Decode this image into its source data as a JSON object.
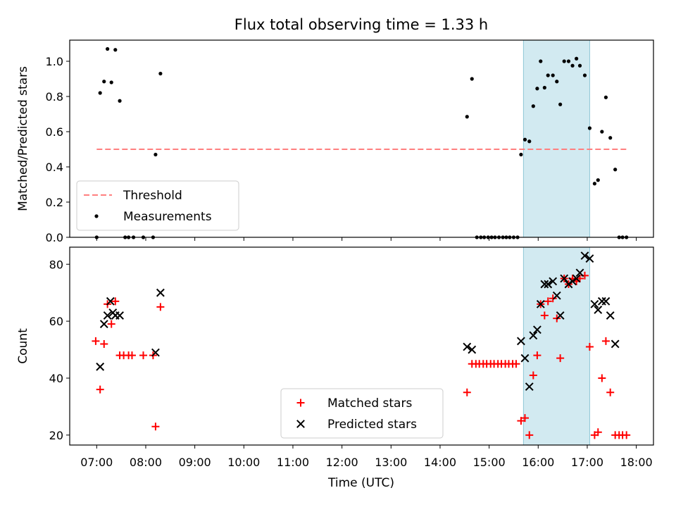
{
  "chart_data": {
    "type": "scatter",
    "title": "Flux total observing time = 1.33 h",
    "xlabel": "Time (UTC)",
    "x_unit": "hours UTC",
    "xlim": [
      6.45,
      18.35
    ],
    "x_ticks": [
      7,
      8,
      9,
      10,
      11,
      12,
      13,
      14,
      15,
      16,
      17,
      18
    ],
    "x_tick_labels": [
      "07:00",
      "08:00",
      "09:00",
      "10:00",
      "11:00",
      "12:00",
      "13:00",
      "14:00",
      "15:00",
      "16:00",
      "17:00",
      "18:00"
    ],
    "highlight_span": [
      15.7,
      17.05
    ],
    "highlight_color": "#add8e6",
    "panels": [
      {
        "ylabel": "Matched/Predicted stars",
        "ylim": [
          0,
          1.12
        ],
        "y_ticks": [
          0,
          0.2,
          0.4,
          0.6,
          0.8,
          1.0
        ],
        "y_tick_labels": [
          "0.0",
          "0.2",
          "0.4",
          "0.6",
          "0.8",
          "1.0"
        ],
        "legend_position": "lower-left",
        "threshold": {
          "name": "Threshold",
          "value": 0.5,
          "x": [
            7.0,
            17.8
          ],
          "color": "#ff7f7f",
          "style": "dashed"
        },
        "series": [
          {
            "name": "Measurements",
            "marker": "dot",
            "color": "#000000",
            "points": [
              [
                7.0,
                0.0
              ],
              [
                7.07,
                0.82
              ],
              [
                7.15,
                0.885
              ],
              [
                7.22,
                1.07
              ],
              [
                7.3,
                0.88
              ],
              [
                7.38,
                1.065
              ],
              [
                7.47,
                0.775
              ],
              [
                7.58,
                0.0
              ],
              [
                7.65,
                0.0
              ],
              [
                7.75,
                0.0
              ],
              [
                7.95,
                0.0
              ],
              [
                8.15,
                0.0
              ],
              [
                8.2,
                0.47
              ],
              [
                8.3,
                0.93
              ],
              [
                14.55,
                0.685
              ],
              [
                14.65,
                0.9
              ],
              [
                14.75,
                0.0
              ],
              [
                14.83,
                0.0
              ],
              [
                14.9,
                0.0
              ],
              [
                14.98,
                0.0
              ],
              [
                15.05,
                0.0
              ],
              [
                15.12,
                0.0
              ],
              [
                15.2,
                0.0
              ],
              [
                15.28,
                0.0
              ],
              [
                15.35,
                0.0
              ],
              [
                15.42,
                0.0
              ],
              [
                15.5,
                0.0
              ],
              [
                15.58,
                0.0
              ],
              [
                15.65,
                0.47
              ],
              [
                15.73,
                0.555
              ],
              [
                15.82,
                0.545
              ],
              [
                15.9,
                0.745
              ],
              [
                15.98,
                0.845
              ],
              [
                16.05,
                1.0
              ],
              [
                16.13,
                0.85
              ],
              [
                16.2,
                0.92
              ],
              [
                16.3,
                0.92
              ],
              [
                16.38,
                0.885
              ],
              [
                16.45,
                0.755
              ],
              [
                16.53,
                1.0
              ],
              [
                16.62,
                1.0
              ],
              [
                16.7,
                0.975
              ],
              [
                16.78,
                1.015
              ],
              [
                16.85,
                0.975
              ],
              [
                16.95,
                0.92
              ],
              [
                17.05,
                0.62
              ],
              [
                17.15,
                0.305
              ],
              [
                17.22,
                0.325
              ],
              [
                17.3,
                0.6
              ],
              [
                17.38,
                0.795
              ],
              [
                17.47,
                0.565
              ],
              [
                17.57,
                0.385
              ],
              [
                17.65,
                0.0
              ],
              [
                17.72,
                0.0
              ],
              [
                17.8,
                0.0
              ]
            ]
          }
        ]
      },
      {
        "ylabel": "Count",
        "ylim": [
          16.5,
          86
        ],
        "y_ticks": [
          20,
          40,
          60,
          80
        ],
        "y_tick_labels": [
          "20",
          "40",
          "60",
          "80"
        ],
        "legend_position": "lower-center",
        "series": [
          {
            "name": "Matched stars",
            "marker": "plus",
            "color": "#ff0000",
            "points": [
              [
                6.98,
                53
              ],
              [
                7.07,
                36
              ],
              [
                7.15,
                52
              ],
              [
                7.22,
                66
              ],
              [
                7.3,
                59
              ],
              [
                7.38,
                67
              ],
              [
                7.47,
                48
              ],
              [
                7.55,
                48
              ],
              [
                7.65,
                48
              ],
              [
                7.72,
                48
              ],
              [
                7.95,
                48
              ],
              [
                8.15,
                48
              ],
              [
                8.2,
                23
              ],
              [
                8.3,
                65
              ],
              [
                14.55,
                35
              ],
              [
                14.65,
                45
              ],
              [
                14.73,
                45
              ],
              [
                14.8,
                45
              ],
              [
                14.88,
                45
              ],
              [
                14.95,
                45
              ],
              [
                15.03,
                45
              ],
              [
                15.1,
                45
              ],
              [
                15.18,
                45
              ],
              [
                15.25,
                45
              ],
              [
                15.33,
                45
              ],
              [
                15.4,
                45
              ],
              [
                15.48,
                45
              ],
              [
                15.55,
                45
              ],
              [
                15.65,
                25
              ],
              [
                15.73,
                26
              ],
              [
                15.82,
                20
              ],
              [
                15.9,
                41
              ],
              [
                15.98,
                48
              ],
              [
                16.05,
                66
              ],
              [
                16.13,
                62
              ],
              [
                16.2,
                67
              ],
              [
                16.3,
                68
              ],
              [
                16.38,
                61
              ],
              [
                16.45,
                47
              ],
              [
                16.53,
                75
              ],
              [
                16.62,
                73
              ],
              [
                16.7,
                75
              ],
              [
                16.78,
                74
              ],
              [
                16.85,
                75
              ],
              [
                16.95,
                76
              ],
              [
                17.05,
                51
              ],
              [
                17.15,
                20
              ],
              [
                17.22,
                21
              ],
              [
                17.3,
                40
              ],
              [
                17.38,
                53
              ],
              [
                17.47,
                35
              ],
              [
                17.57,
                20
              ],
              [
                17.65,
                20
              ],
              [
                17.72,
                20
              ],
              [
                17.8,
                20
              ]
            ]
          },
          {
            "name": "Predicted stars",
            "marker": "x",
            "color": "#000000",
            "points": [
              [
                7.07,
                44
              ],
              [
                7.15,
                59
              ],
              [
                7.22,
                62
              ],
              [
                7.28,
                67
              ],
              [
                7.33,
                63
              ],
              [
                7.38,
                62
              ],
              [
                7.47,
                62
              ],
              [
                8.2,
                49
              ],
              [
                8.3,
                70
              ],
              [
                14.55,
                51
              ],
              [
                14.65,
                50
              ],
              [
                15.65,
                53
              ],
              [
                15.73,
                47
              ],
              [
                15.82,
                37
              ],
              [
                15.9,
                55
              ],
              [
                15.98,
                57
              ],
              [
                16.05,
                66
              ],
              [
                16.13,
                73
              ],
              [
                16.2,
                73
              ],
              [
                16.3,
                74
              ],
              [
                16.38,
                69
              ],
              [
                16.45,
                62
              ],
              [
                16.53,
                75
              ],
              [
                16.62,
                73
              ],
              [
                16.7,
                74
              ],
              [
                16.78,
                75
              ],
              [
                16.85,
                77
              ],
              [
                16.95,
                83
              ],
              [
                17.05,
                82
              ],
              [
                17.15,
                66
              ],
              [
                17.22,
                64
              ],
              [
                17.3,
                67
              ],
              [
                17.38,
                67
              ],
              [
                17.47,
                62
              ],
              [
                17.57,
                52
              ]
            ]
          }
        ]
      }
    ]
  }
}
